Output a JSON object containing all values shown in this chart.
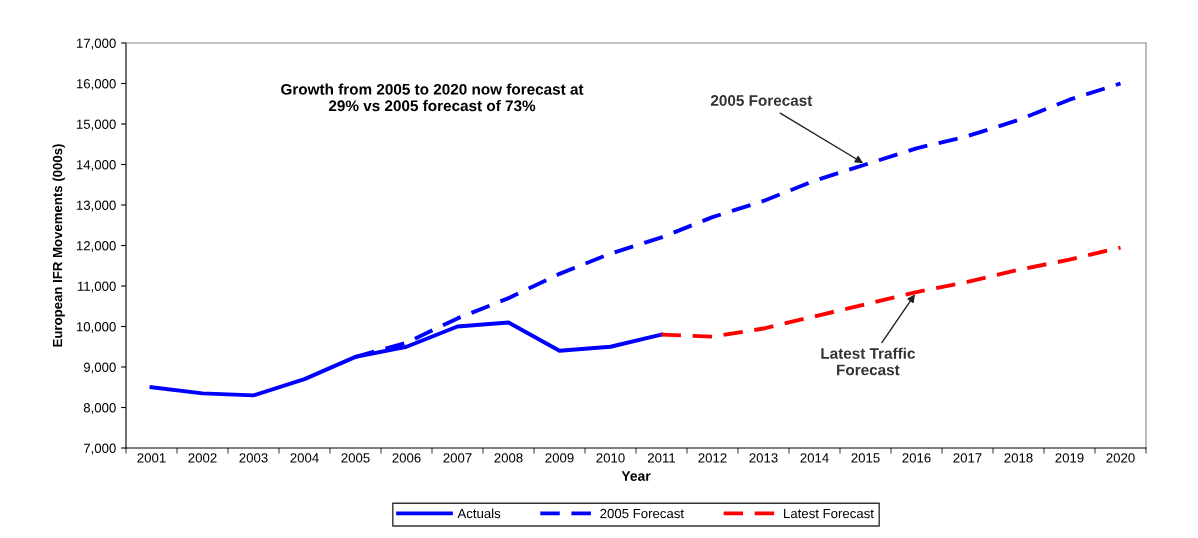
{
  "chart_data": {
    "type": "line",
    "categories": [
      "2001",
      "2002",
      "2003",
      "2004",
      "2005",
      "2006",
      "2007",
      "2008",
      "2009",
      "2010",
      "2011",
      "2012",
      "2013",
      "2014",
      "2015",
      "2016",
      "2017",
      "2018",
      "2019",
      "2020"
    ],
    "series": [
      {
        "name": "Actuals",
        "color": "#0000ff",
        "line_style": "solid",
        "values": [
          8500,
          8350,
          8300,
          8700,
          9250,
          9500,
          10000,
          10100,
          9400,
          9500,
          9800,
          null,
          null,
          null,
          null,
          null,
          null,
          null,
          null,
          null
        ]
      },
      {
        "name": "2005 Forecast",
        "color": "#0000ff",
        "line_style": "dashed",
        "values": [
          null,
          null,
          null,
          null,
          9250,
          9600,
          10200,
          10700,
          11300,
          11800,
          12200,
          12700,
          13100,
          13600,
          14000,
          14400,
          14700,
          15100,
          15600,
          16000
        ]
      },
      {
        "name": "Latest Forecast",
        "color": "#ff0000",
        "line_style": "dashed",
        "values": [
          null,
          null,
          null,
          null,
          null,
          null,
          null,
          null,
          null,
          null,
          9800,
          9750,
          9950,
          10250,
          10550,
          10850,
          11100,
          11400,
          11650,
          11950
        ]
      }
    ],
    "xlabel": "Year",
    "ylabel": "European IFR Movements (000s)",
    "ylim": [
      7000,
      17000
    ],
    "yticks": [
      {
        "value": 7000,
        "label": "7,000"
      },
      {
        "value": 8000,
        "label": "8,000"
      },
      {
        "value": 9000,
        "label": "9,000"
      },
      {
        "value": 10000,
        "label": "10,000"
      },
      {
        "value": 11000,
        "label": "11,000"
      },
      {
        "value": 12000,
        "label": "12,000"
      },
      {
        "value": 13000,
        "label": "13,000"
      },
      {
        "value": 14000,
        "label": "14,000"
      },
      {
        "value": 15000,
        "label": "15,000"
      },
      {
        "value": 16000,
        "label": "16,000"
      },
      {
        "value": 17000,
        "label": "17,000"
      }
    ],
    "annotations": [
      "Growth from 2005 to 2020 now forecast at\n29% vs 2005 forecast of 73%",
      {
        "text": "2005 Forecast",
        "x": "2015",
        "y": 14000
      },
      {
        "text": "Latest Traffic\nForecast",
        "x": "2016",
        "y": 10850
      }
    ],
    "grid": false,
    "legend": "bottom",
    "marker": "none"
  }
}
